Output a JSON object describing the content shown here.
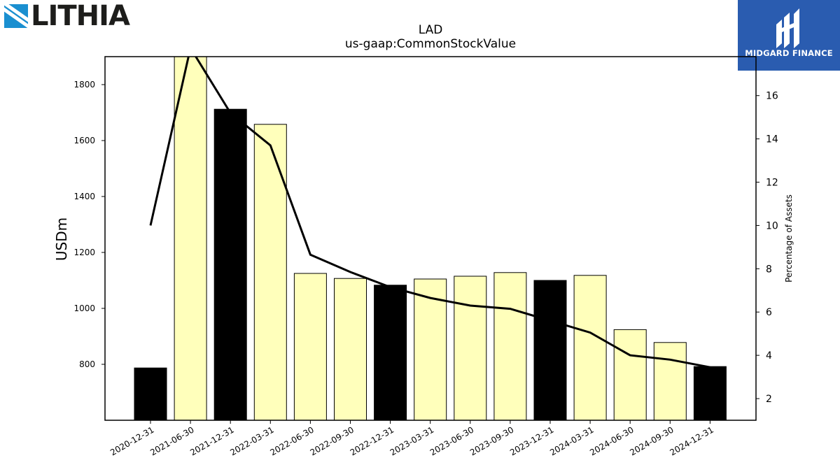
{
  "logos": {
    "left_text": "LITHIA",
    "right_text": "MIDGARD FINANCE"
  },
  "chart_data": {
    "type": "bar",
    "title": "LAD",
    "subtitle": "us-gaap:CommonStockValue",
    "ylabel": "USDm",
    "y2label": "Percentage of Assets",
    "categories": [
      "2020-12-31",
      "2021-06-30",
      "2021-12-31",
      "2022-03-31",
      "2022-06-30",
      "2022-09-30",
      "2022-12-31",
      "2023-03-31",
      "2023-06-30",
      "2023-09-30",
      "2023-12-31",
      "2024-03-31",
      "2024-06-30",
      "2024-09-30",
      "2024-12-31"
    ],
    "values": [
      787,
      1900,
      1712,
      1658,
      1125,
      1107,
      1083,
      1105,
      1115,
      1128,
      1100,
      1118,
      924,
      878,
      792
    ],
    "bar_colors": [
      "#000000",
      "#ffffbb",
      "#000000",
      "#ffffbb",
      "#ffffbb",
      "#ffffbb",
      "#000000",
      "#ffffbb",
      "#ffffbb",
      "#ffffbb",
      "#000000",
      "#ffffbb",
      "#ffffbb",
      "#ffffbb",
      "#000000"
    ],
    "line_series": {
      "axis": "right",
      "values": [
        10.0,
        18.2,
        15.2,
        13.7,
        8.65,
        7.85,
        7.15,
        6.65,
        6.3,
        6.15,
        5.6,
        5.05,
        4.0,
        3.8,
        3.45
      ]
    },
    "ylim": [
      600,
      1900
    ],
    "y2lim": [
      1,
      17.8
    ],
    "yticks": [
      800,
      1000,
      1200,
      1400,
      1600,
      1800
    ],
    "y2ticks": [
      2,
      4,
      6,
      8,
      10,
      12,
      14,
      16
    ],
    "grid": false,
    "colors": {
      "dark_bar": "#000000",
      "light_bar": "#ffffbb",
      "line": "#000000"
    }
  }
}
